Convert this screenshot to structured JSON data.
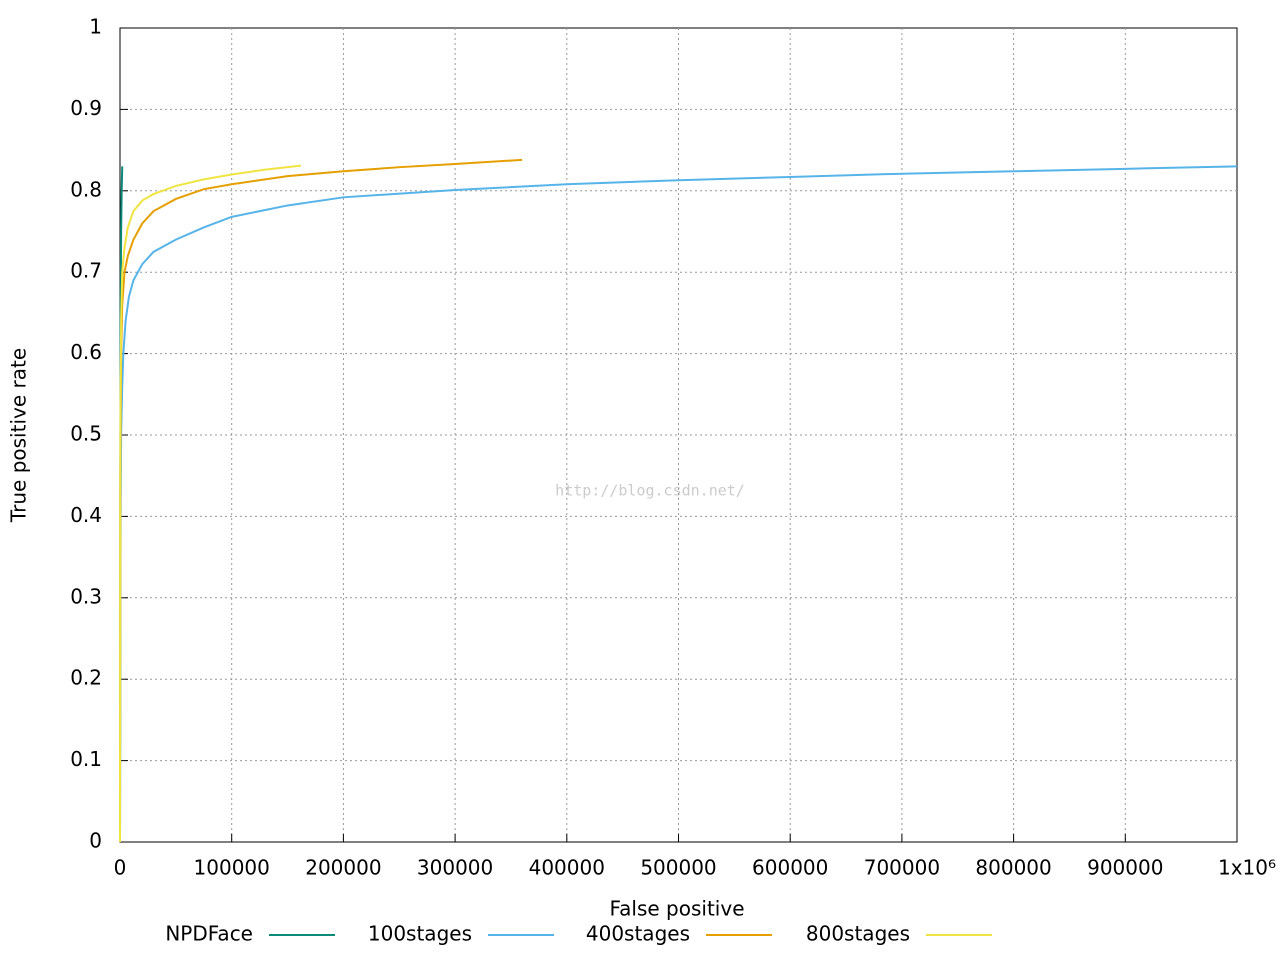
{
  "chart_data": {
    "type": "line",
    "x_label": "False positive",
    "y_label": "True positive rate",
    "watermark": "http://blog.csdn.net/",
    "xlim": [
      0,
      1000000
    ],
    "ylim": [
      0,
      1
    ],
    "xticks": [
      0,
      100000,
      200000,
      300000,
      400000,
      500000,
      600000,
      700000,
      800000,
      900000,
      {
        "value": 1000000,
        "label": "1x10⁶"
      }
    ],
    "yticks": [
      0,
      0.1,
      0.2,
      0.3,
      0.4,
      0.5,
      0.6,
      0.7,
      0.8,
      0.9,
      1
    ],
    "grid": true,
    "legend": "bottom",
    "series": [
      {
        "name": "NPDFace",
        "color": "#0b8a7a",
        "x": [
          0,
          500,
          1000,
          1500,
          2000
        ],
        "values": [
          0,
          0.63,
          0.75,
          0.8,
          0.83
        ]
      },
      {
        "name": "100stages",
        "color": "#56b4e9",
        "x": [
          0,
          500,
          1000,
          2000,
          3000,
          5000,
          8000,
          12000,
          20000,
          30000,
          50000,
          75000,
          100000,
          150000,
          200000,
          300000,
          400000,
          500000,
          600000,
          700000,
          800000,
          900000,
          1000000
        ],
        "values": [
          0,
          0.38,
          0.5,
          0.56,
          0.6,
          0.64,
          0.67,
          0.69,
          0.71,
          0.725,
          0.74,
          0.755,
          0.768,
          0.782,
          0.792,
          0.801,
          0.808,
          0.813,
          0.817,
          0.821,
          0.824,
          0.827,
          0.83
        ]
      },
      {
        "name": "400stages",
        "color": "#e69f00",
        "x": [
          0,
          300,
          1000,
          2000,
          4000,
          7000,
          12000,
          20000,
          30000,
          50000,
          75000,
          100000,
          150000,
          200000,
          250000,
          300000,
          360000
        ],
        "values": [
          0,
          0.45,
          0.6,
          0.66,
          0.7,
          0.72,
          0.74,
          0.76,
          0.775,
          0.79,
          0.802,
          0.808,
          0.818,
          0.824,
          0.829,
          0.833,
          0.838
        ]
      },
      {
        "name": "800stages",
        "color": "#f0e442",
        "x": [
          0,
          300,
          1000,
          2000,
          4000,
          7000,
          12000,
          20000,
          30000,
          50000,
          75000,
          100000,
          130000,
          162000
        ],
        "values": [
          0,
          0.5,
          0.64,
          0.7,
          0.73,
          0.755,
          0.775,
          0.788,
          0.796,
          0.806,
          0.814,
          0.82,
          0.826,
          0.831
        ]
      }
    ]
  }
}
